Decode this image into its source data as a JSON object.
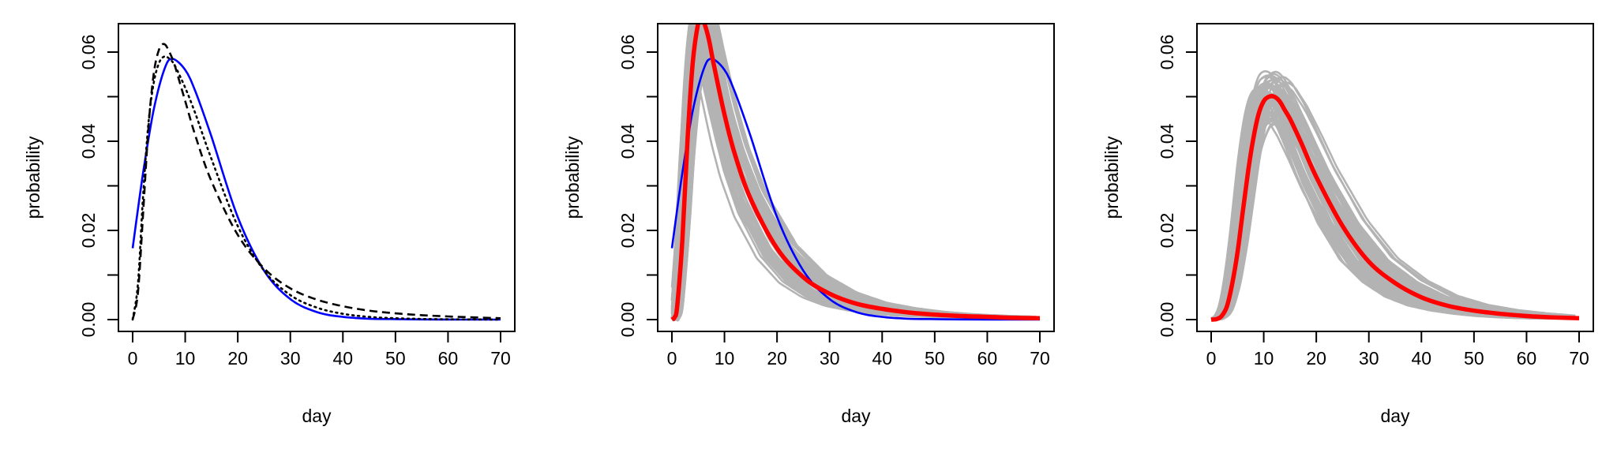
{
  "chart_data": [
    {
      "type": "line",
      "xlabel": "day",
      "ylabel": "probability",
      "xlim": [
        0,
        70
      ],
      "ylim": [
        0,
        0.06
      ],
      "xticks": [
        "0",
        "10",
        "20",
        "30",
        "40",
        "50",
        "60",
        "70"
      ],
      "yticks": [
        "0.00",
        "0.02",
        "0.04",
        "0.06"
      ],
      "grid": false,
      "series": [
        {
          "style": "solid",
          "color": "#0000ff",
          "x": [
            0,
            2,
            4,
            6,
            7.5,
            10,
            12,
            15,
            20,
            25,
            30,
            35,
            40,
            45,
            50,
            55,
            60,
            65,
            70
          ],
          "y": [
            0.016,
            0.033,
            0.047,
            0.056,
            0.0585,
            0.056,
            0.051,
            0.041,
            0.023,
            0.011,
            0.0046,
            0.0017,
            0.0006,
            0.0002,
            0.0001,
            4e-05,
            1e-05,
            0,
            0
          ]
        },
        {
          "style": "dashed",
          "color": "#000000",
          "x": [
            0,
            1,
            2,
            3,
            4,
            5,
            6,
            7,
            8,
            10,
            12,
            15,
            20,
            25,
            30,
            35,
            40,
            45,
            50,
            55,
            60,
            65,
            70
          ],
          "y": [
            0,
            0.006,
            0.024,
            0.043,
            0.055,
            0.0605,
            0.0618,
            0.06,
            0.057,
            0.049,
            0.041,
            0.031,
            0.019,
            0.0115,
            0.007,
            0.0045,
            0.003,
            0.002,
            0.0014,
            0.001,
            0.0007,
            0.0005,
            0.0003
          ]
        },
        {
          "style": "dotted",
          "color": "#000000",
          "x": [
            0,
            1,
            2,
            3,
            4,
            5,
            6,
            7,
            8,
            10,
            12,
            15,
            20,
            25,
            30,
            35,
            40,
            45,
            50,
            55,
            60,
            65,
            70
          ],
          "y": [
            0,
            0.008,
            0.028,
            0.044,
            0.053,
            0.0575,
            0.059,
            0.0585,
            0.057,
            0.052,
            0.046,
            0.036,
            0.021,
            0.011,
            0.0055,
            0.0027,
            0.0013,
            0.0006,
            0.0003,
            0.00015,
            7e-05,
            3e-05,
            1e-05
          ]
        }
      ]
    },
    {
      "type": "line",
      "xlabel": "day",
      "ylabel": "probability",
      "xlim": [
        0,
        70
      ],
      "ylim": [
        0,
        0.06
      ],
      "xticks": [
        "0",
        "10",
        "20",
        "30",
        "40",
        "50",
        "60",
        "70"
      ],
      "yticks": [
        "0.00",
        "0.02",
        "0.04",
        "0.06"
      ],
      "grid": false,
      "gray_band": {
        "color": "#b3b3b3",
        "count": 60,
        "base": "red",
        "spread": 0.15
      },
      "series": [
        {
          "style": "solid",
          "color": "#0000ff",
          "x": [
            0,
            2,
            4,
            6,
            7.5,
            10,
            12,
            15,
            20,
            25,
            30,
            35,
            40,
            45,
            50,
            55,
            60,
            65,
            70
          ],
          "y": [
            0.016,
            0.033,
            0.047,
            0.056,
            0.0585,
            0.056,
            0.051,
            0.041,
            0.023,
            0.011,
            0.0046,
            0.0017,
            0.0006,
            0.0002,
            0.0001,
            4e-05,
            1e-05,
            0,
            0
          ]
        },
        {
          "style": "thick",
          "color": "#ff0000",
          "x": [
            0,
            0.5,
            1,
            2,
            3,
            4,
            5,
            5.5,
            6,
            7,
            8,
            10,
            12,
            15,
            20,
            25,
            30,
            35,
            40,
            45,
            50,
            55,
            60,
            65,
            70
          ],
          "y": [
            0,
            0.0005,
            0.003,
            0.018,
            0.041,
            0.058,
            0.0665,
            0.0675,
            0.067,
            0.063,
            0.057,
            0.046,
            0.037,
            0.027,
            0.016,
            0.0095,
            0.0058,
            0.0036,
            0.0024,
            0.0016,
            0.0011,
            0.0008,
            0.0006,
            0.0004,
            0.0003
          ]
        }
      ]
    },
    {
      "type": "line",
      "xlabel": "day",
      "ylabel": "probability",
      "xlim": [
        0,
        70
      ],
      "ylim": [
        0,
        0.06
      ],
      "xticks": [
        "0",
        "10",
        "20",
        "30",
        "40",
        "50",
        "60",
        "70"
      ],
      "yticks": [
        "0.00",
        "0.02",
        "0.04",
        "0.06"
      ],
      "grid": false,
      "gray_band": {
        "color": "#b3b3b3",
        "count": 60,
        "base": "red",
        "spread": 0.12
      },
      "series": [
        {
          "style": "thick",
          "color": "#ff0000",
          "x": [
            0,
            1,
            2,
            3,
            4,
            5,
            6,
            7,
            8,
            9,
            10,
            11,
            12,
            13,
            14,
            15,
            17,
            20,
            25,
            30,
            35,
            40,
            45,
            50,
            55,
            60,
            65,
            70
          ],
          "y": [
            0,
            0.0001,
            0.0008,
            0.003,
            0.008,
            0.015,
            0.024,
            0.033,
            0.0405,
            0.046,
            0.049,
            0.05,
            0.05,
            0.049,
            0.047,
            0.045,
            0.04,
            0.032,
            0.021,
            0.013,
            0.0082,
            0.005,
            0.0031,
            0.002,
            0.0013,
            0.0008,
            0.0005,
            0.0003
          ]
        }
      ]
    }
  ]
}
